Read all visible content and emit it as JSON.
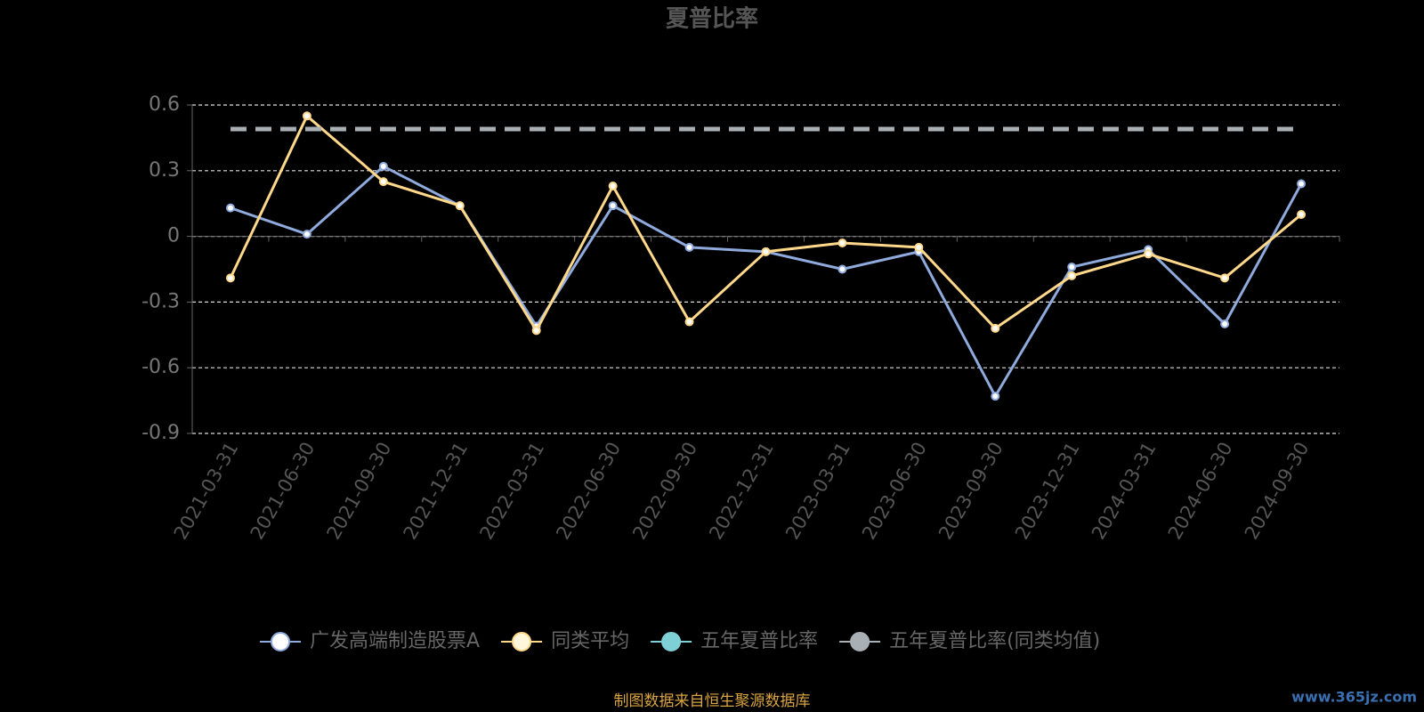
{
  "chart_data": {
    "type": "line",
    "title": "夏普比率",
    "categories": [
      "2021-03-31",
      "2021-06-30",
      "2021-09-30",
      "2021-12-31",
      "2022-03-31",
      "2022-06-30",
      "2022-09-30",
      "2022-12-31",
      "2023-03-31",
      "2023-06-30",
      "2023-09-30",
      "2023-12-31",
      "2024-03-31",
      "2024-06-30",
      "2024-09-30"
    ],
    "series": [
      {
        "name": "广发高端制造股票A",
        "color": "#8faadc",
        "values": [
          0.13,
          0.01,
          0.32,
          0.14,
          -0.41,
          0.14,
          -0.05,
          -0.07,
          -0.15,
          -0.07,
          -0.73,
          -0.14,
          -0.06,
          -0.4,
          0.24
        ]
      },
      {
        "name": "同类平均",
        "color": "#ffd88a",
        "values": [
          -0.19,
          0.55,
          0.25,
          0.14,
          -0.43,
          0.23,
          -0.39,
          -0.07,
          -0.03,
          -0.05,
          -0.42,
          -0.18,
          -0.08,
          -0.19,
          0.1
        ]
      },
      {
        "name": "五年夏普比率",
        "color": "#7ecfd6",
        "values": [
          null,
          null,
          null,
          null,
          null,
          null,
          null,
          null,
          null,
          null,
          null,
          null,
          null,
          null,
          null
        ]
      },
      {
        "name": "五年夏普比率(同类均值)",
        "color": "#a9b0b5",
        "dashed": true,
        "values": [
          0.49,
          0.49,
          0.49,
          0.49,
          0.49,
          0.49,
          0.49,
          0.49,
          0.49,
          0.49,
          0.49,
          0.49,
          0.49,
          0.49,
          0.49
        ]
      }
    ],
    "ylim": [
      -0.9,
      0.6
    ],
    "yticks": [
      -0.9,
      -0.6,
      -0.3,
      0,
      0.3,
      0.6
    ],
    "grid": true,
    "legend": "bottom",
    "source": "制图数据来自恒生聚源数据库",
    "watermark": "www.365jz.com"
  }
}
